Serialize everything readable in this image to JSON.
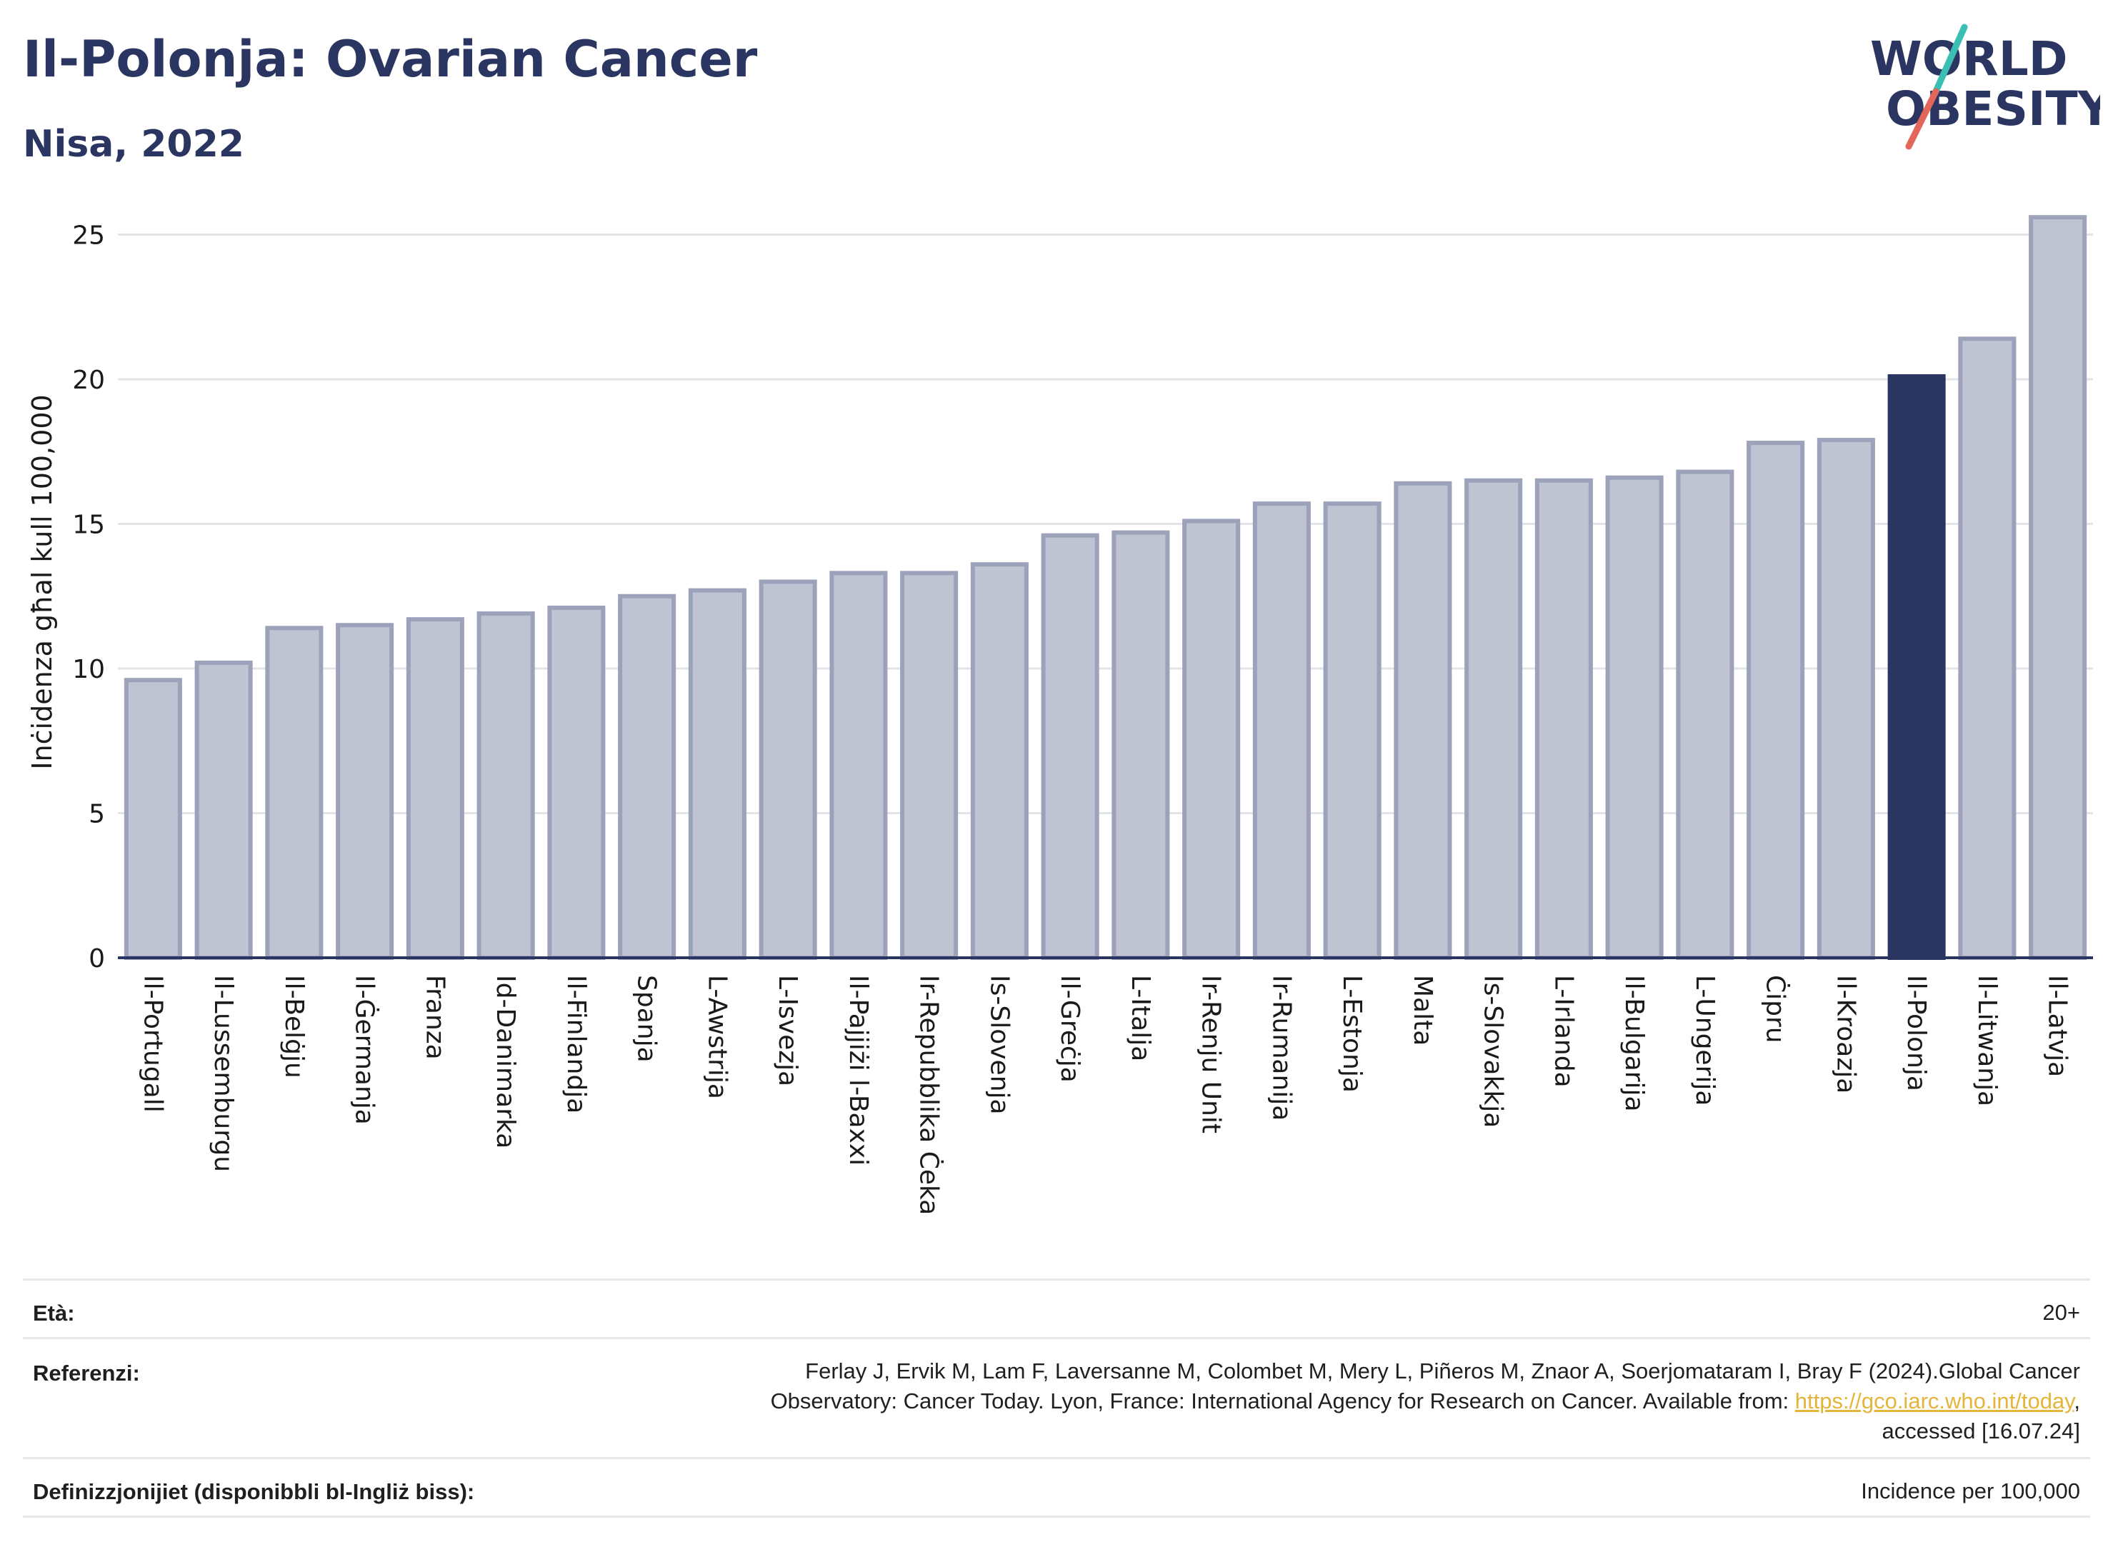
{
  "header": {
    "title": "Il-Polonja: Ovarian Cancer",
    "subtitle": "Nisa, 2022"
  },
  "logo": {
    "line1": "WORLD",
    "line2": "OBESITY",
    "accent_teal": "#3bbfb5",
    "accent_red": "#e2665a",
    "text_color": "#2b3561"
  },
  "colors": {
    "bar_default": "#c0c3d1",
    "bar_border": "#9da2bb",
    "bar_highlight": "#2b3561",
    "grid": "#e3e4e8",
    "axis": "#2b3561"
  },
  "chart_data": {
    "type": "bar",
    "title": "",
    "xlabel": "",
    "ylabel": "Inċidenza għal kull 100,000",
    "ylim": [
      0,
      26
    ],
    "yticks": [
      0,
      5,
      10,
      15,
      20,
      25
    ],
    "grid": true,
    "highlight": "Il-Polonja",
    "categories": [
      "Il-Portugall",
      "Il-Lussemburgu",
      "Il-Belġju",
      "Il-Ġermanja",
      "Franza",
      "Id-Danimarka",
      "Il-Finlandja",
      "Spanja",
      "L-Awstrija",
      "L-Isvezja",
      "Il-Pajjiżi l-Baxxi",
      "Ir-Repubblika Ċeka",
      "Is-Slovenja",
      "Il-Greċja",
      "L-Italja",
      "Ir-Renju Unit",
      "Ir-Rumanija",
      "L-Estonja",
      "Malta",
      "Is-Slovakkja",
      "L-Irlanda",
      "Il-Bulgarija",
      "L-Ungerija",
      "Ċipru",
      "Il-Kroazja",
      "Il-Polonja",
      "Il-Litwanja",
      "Il-Latvja"
    ],
    "values": [
      9.6,
      10.2,
      11.4,
      11.5,
      11.7,
      11.9,
      12.1,
      12.5,
      12.7,
      13.0,
      13.3,
      13.3,
      13.6,
      14.6,
      14.7,
      15.1,
      15.7,
      15.7,
      16.4,
      16.5,
      16.5,
      16.6,
      16.8,
      17.8,
      17.9,
      20.1,
      21.4,
      25.6
    ]
  },
  "meta": {
    "age_label": "Età:",
    "age_value": "20+",
    "ref_label": "Referenzi:",
    "ref_line1": "Ferlay J, Ervik M, Lam F, Laversanne M, Colombet M, Mery L, Piñeros M, Znaor A, Soerjomataram I, Bray F (2024).Global Cancer",
    "ref_line2_pre": "Observatory: Cancer Today. Lyon, France: International Agency for Research on Cancer. Available from: ",
    "ref_link": "https://gco.iarc.who.int/today",
    "ref_line2_post": ",",
    "ref_line3": "accessed [16.07.24]",
    "def_label": "Definizzjonijiet (disponibbli bl-Ingliż biss):",
    "def_value": "Incidence per 100,000"
  }
}
